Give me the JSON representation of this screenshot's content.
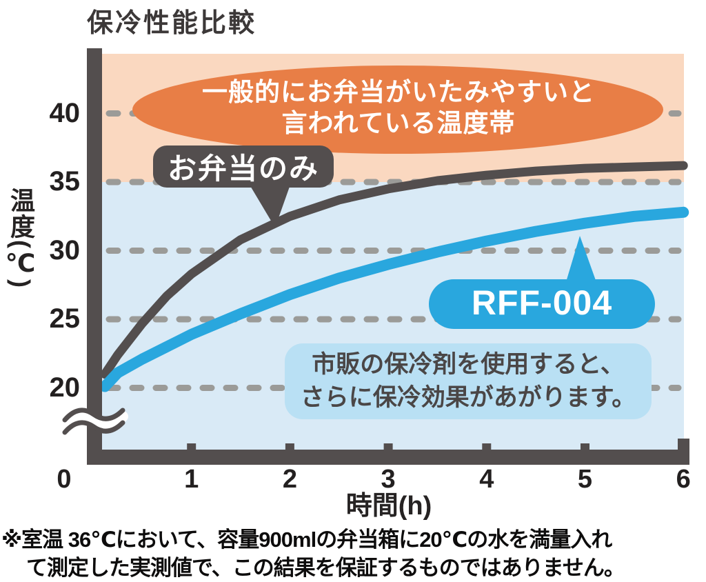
{
  "title": "保冷性能比較",
  "y_axis": {
    "title": "温度(℃)"
  },
  "x_axis": {
    "title": "時間(h)"
  },
  "band_label": {
    "line1": "一般的にお弁当がいたみやすいと",
    "line2": "言われている温度帯"
  },
  "callouts": {
    "bento_only": "お弁当のみ",
    "product": "RFF-004"
  },
  "info_box": {
    "line1": "市販の保冷剤を使用すると、",
    "line2": "さらに保冷効果があがります。"
  },
  "footnote": {
    "line1": "※室温 36℃において、容量900mlの弁当箱に20℃の水を満量入れ",
    "line2": "て測定した実測値で、この結果を保証するものではありません。"
  },
  "colors": {
    "danger_zone_bg": "#FAD8C0",
    "safe_zone_bg": "#D9EAF6",
    "danger_ellipse": "#E87E46",
    "dark": "#534E4E",
    "product_blue": "#29A7DE",
    "info_box_bg": "#B9E0F4",
    "grid_dash": "#9B9B98"
  },
  "chart_data": {
    "type": "line",
    "title": "保冷性能比較",
    "xlabel": "時間(h)",
    "ylabel": "温度(℃)",
    "xlim": [
      0,
      6
    ],
    "ylim_shown": [
      20,
      40
    ],
    "axis_break_below": 20,
    "grid": "horizontal dashed",
    "yticks": [
      40,
      35,
      30,
      25,
      20
    ],
    "xticks": [
      0,
      1,
      2,
      3,
      4,
      5,
      6
    ],
    "danger_band": {
      "above_c": 35,
      "label": "一般的にお弁当がいたみやすいと言われている温度帯"
    },
    "series": [
      {
        "name": "お弁当のみ",
        "color": "#534E4E",
        "points": [
          [
            0.12,
            21.0
          ],
          [
            0.25,
            22.4
          ],
          [
            0.5,
            24.7
          ],
          [
            0.75,
            26.7
          ],
          [
            1,
            28.3
          ],
          [
            1.5,
            30.8
          ],
          [
            2,
            32.5
          ],
          [
            2.5,
            33.7
          ],
          [
            3,
            34.5
          ],
          [
            3.5,
            35.1
          ],
          [
            4,
            35.5
          ],
          [
            4.5,
            35.8
          ],
          [
            5,
            36.0
          ],
          [
            5.5,
            36.1
          ],
          [
            6,
            36.2
          ]
        ]
      },
      {
        "name": "RFF-004",
        "color": "#29A7DE",
        "points": [
          [
            0.12,
            20.1
          ],
          [
            0.25,
            21.1
          ],
          [
            0.5,
            22.1
          ],
          [
            0.75,
            23.0
          ],
          [
            1,
            23.9
          ],
          [
            1.5,
            25.4
          ],
          [
            2,
            26.8
          ],
          [
            2.5,
            28.0
          ],
          [
            3,
            29.0
          ],
          [
            3.5,
            29.9
          ],
          [
            4,
            30.7
          ],
          [
            4.5,
            31.4
          ],
          [
            5,
            32.0
          ],
          [
            5.5,
            32.5
          ],
          [
            6,
            32.8
          ]
        ]
      }
    ]
  }
}
